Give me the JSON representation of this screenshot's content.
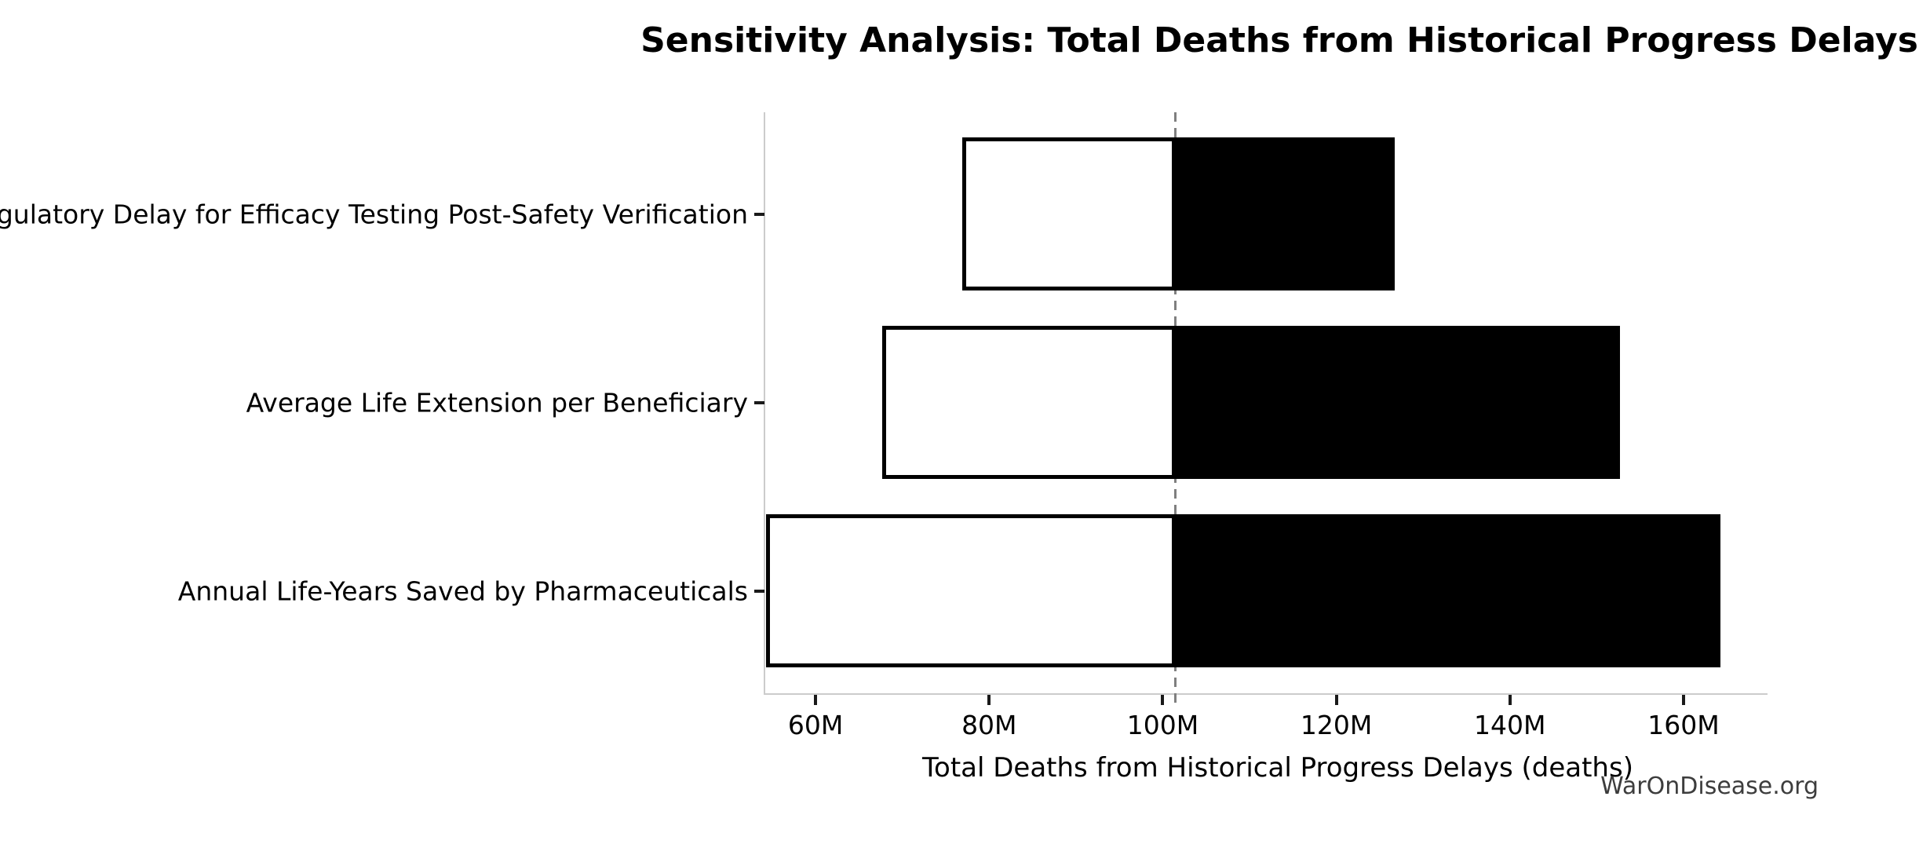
{
  "chart_data": {
    "type": "bar",
    "subtype": "tornado-sensitivity",
    "orientation": "horizontal",
    "title": "Sensitivity Analysis: Total Deaths from Historical Progress Delays",
    "xlabel": "Total Deaths from Historical Progress Delays (deaths)",
    "watermark": "WarOnDisease.org",
    "unit": "M",
    "xlim": [
      54.2,
      169.5
    ],
    "baseline": 101.5,
    "grid": false,
    "legend": false,
    "x_ticks": [
      {
        "value": 60,
        "label": "60M"
      },
      {
        "value": 80,
        "label": "80M"
      },
      {
        "value": 100,
        "label": "100M"
      },
      {
        "value": 120,
        "label": "120M"
      },
      {
        "value": 140,
        "label": "140M"
      },
      {
        "value": 160,
        "label": "160M"
      }
    ],
    "categories": [
      "Regulatory Delay for Efficacy Testing Post-Safety Verification",
      "Average Life Extension per Beneficiary",
      "Annual Life-Years Saved by Pharmaceuticals"
    ],
    "series": [
      {
        "name": "low",
        "fill": "#ffffff",
        "values": [
          76.9,
          67.7,
          54.3
        ]
      },
      {
        "name": "high",
        "fill": "#000000",
        "values": [
          126.7,
          152.7,
          164.3
        ]
      }
    ],
    "colors": {
      "edge": "#000000",
      "baseline_line": "#7f7f7f",
      "spine": "#cccccc",
      "text": "#000000",
      "watermark": "#3d3d3d"
    }
  }
}
